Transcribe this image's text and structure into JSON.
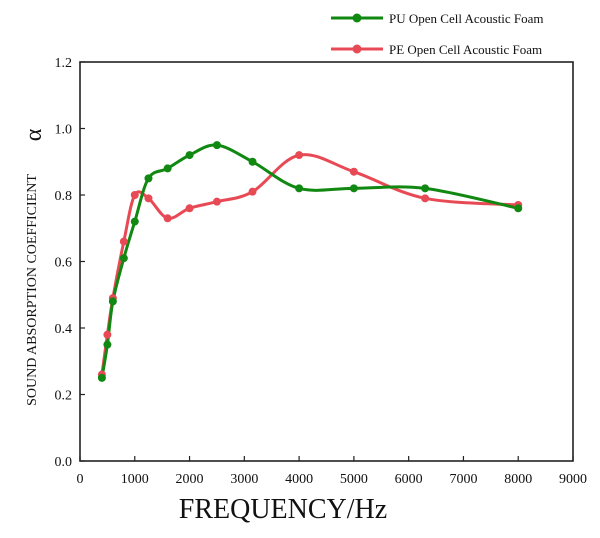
{
  "chart_data": {
    "type": "line",
    "xlabel": "FREQUENCY/Hz",
    "ylabel": "SOUND ABSORPTION COEFFICIENT",
    "ylabel_symbol": "α",
    "xlim": [
      0,
      9000
    ],
    "ylim": [
      0.0,
      1.2
    ],
    "x_ticks": [
      0,
      1000,
      2000,
      3000,
      4000,
      5000,
      6000,
      7000,
      8000,
      9000
    ],
    "y_ticks": [
      "0.0",
      "0.2",
      "0.4",
      "0.6",
      "0.8",
      "1.0",
      "1.2"
    ],
    "grid": false,
    "legend_position": "top-right",
    "series": [
      {
        "name": "PU Open Cell Acoustic Foam",
        "color": "#118811",
        "x": [
          400,
          500,
          600,
          800,
          1000,
          1250,
          1600,
          2000,
          2500,
          3150,
          4000,
          5000,
          6300,
          8000
        ],
        "y": [
          0.25,
          0.35,
          0.48,
          0.61,
          0.72,
          0.85,
          0.88,
          0.92,
          0.95,
          0.9,
          0.82,
          0.82,
          0.82,
          0.76
        ]
      },
      {
        "name": "PE Open Cell Acoustic Foam",
        "color": "#e84a55",
        "x": [
          400,
          500,
          600,
          800,
          1000,
          1250,
          1600,
          2000,
          2500,
          3150,
          4000,
          5000,
          6300,
          8000
        ],
        "y": [
          0.26,
          0.38,
          0.49,
          0.66,
          0.8,
          0.79,
          0.73,
          0.76,
          0.78,
          0.81,
          0.92,
          0.87,
          0.79,
          0.77
        ]
      }
    ]
  }
}
